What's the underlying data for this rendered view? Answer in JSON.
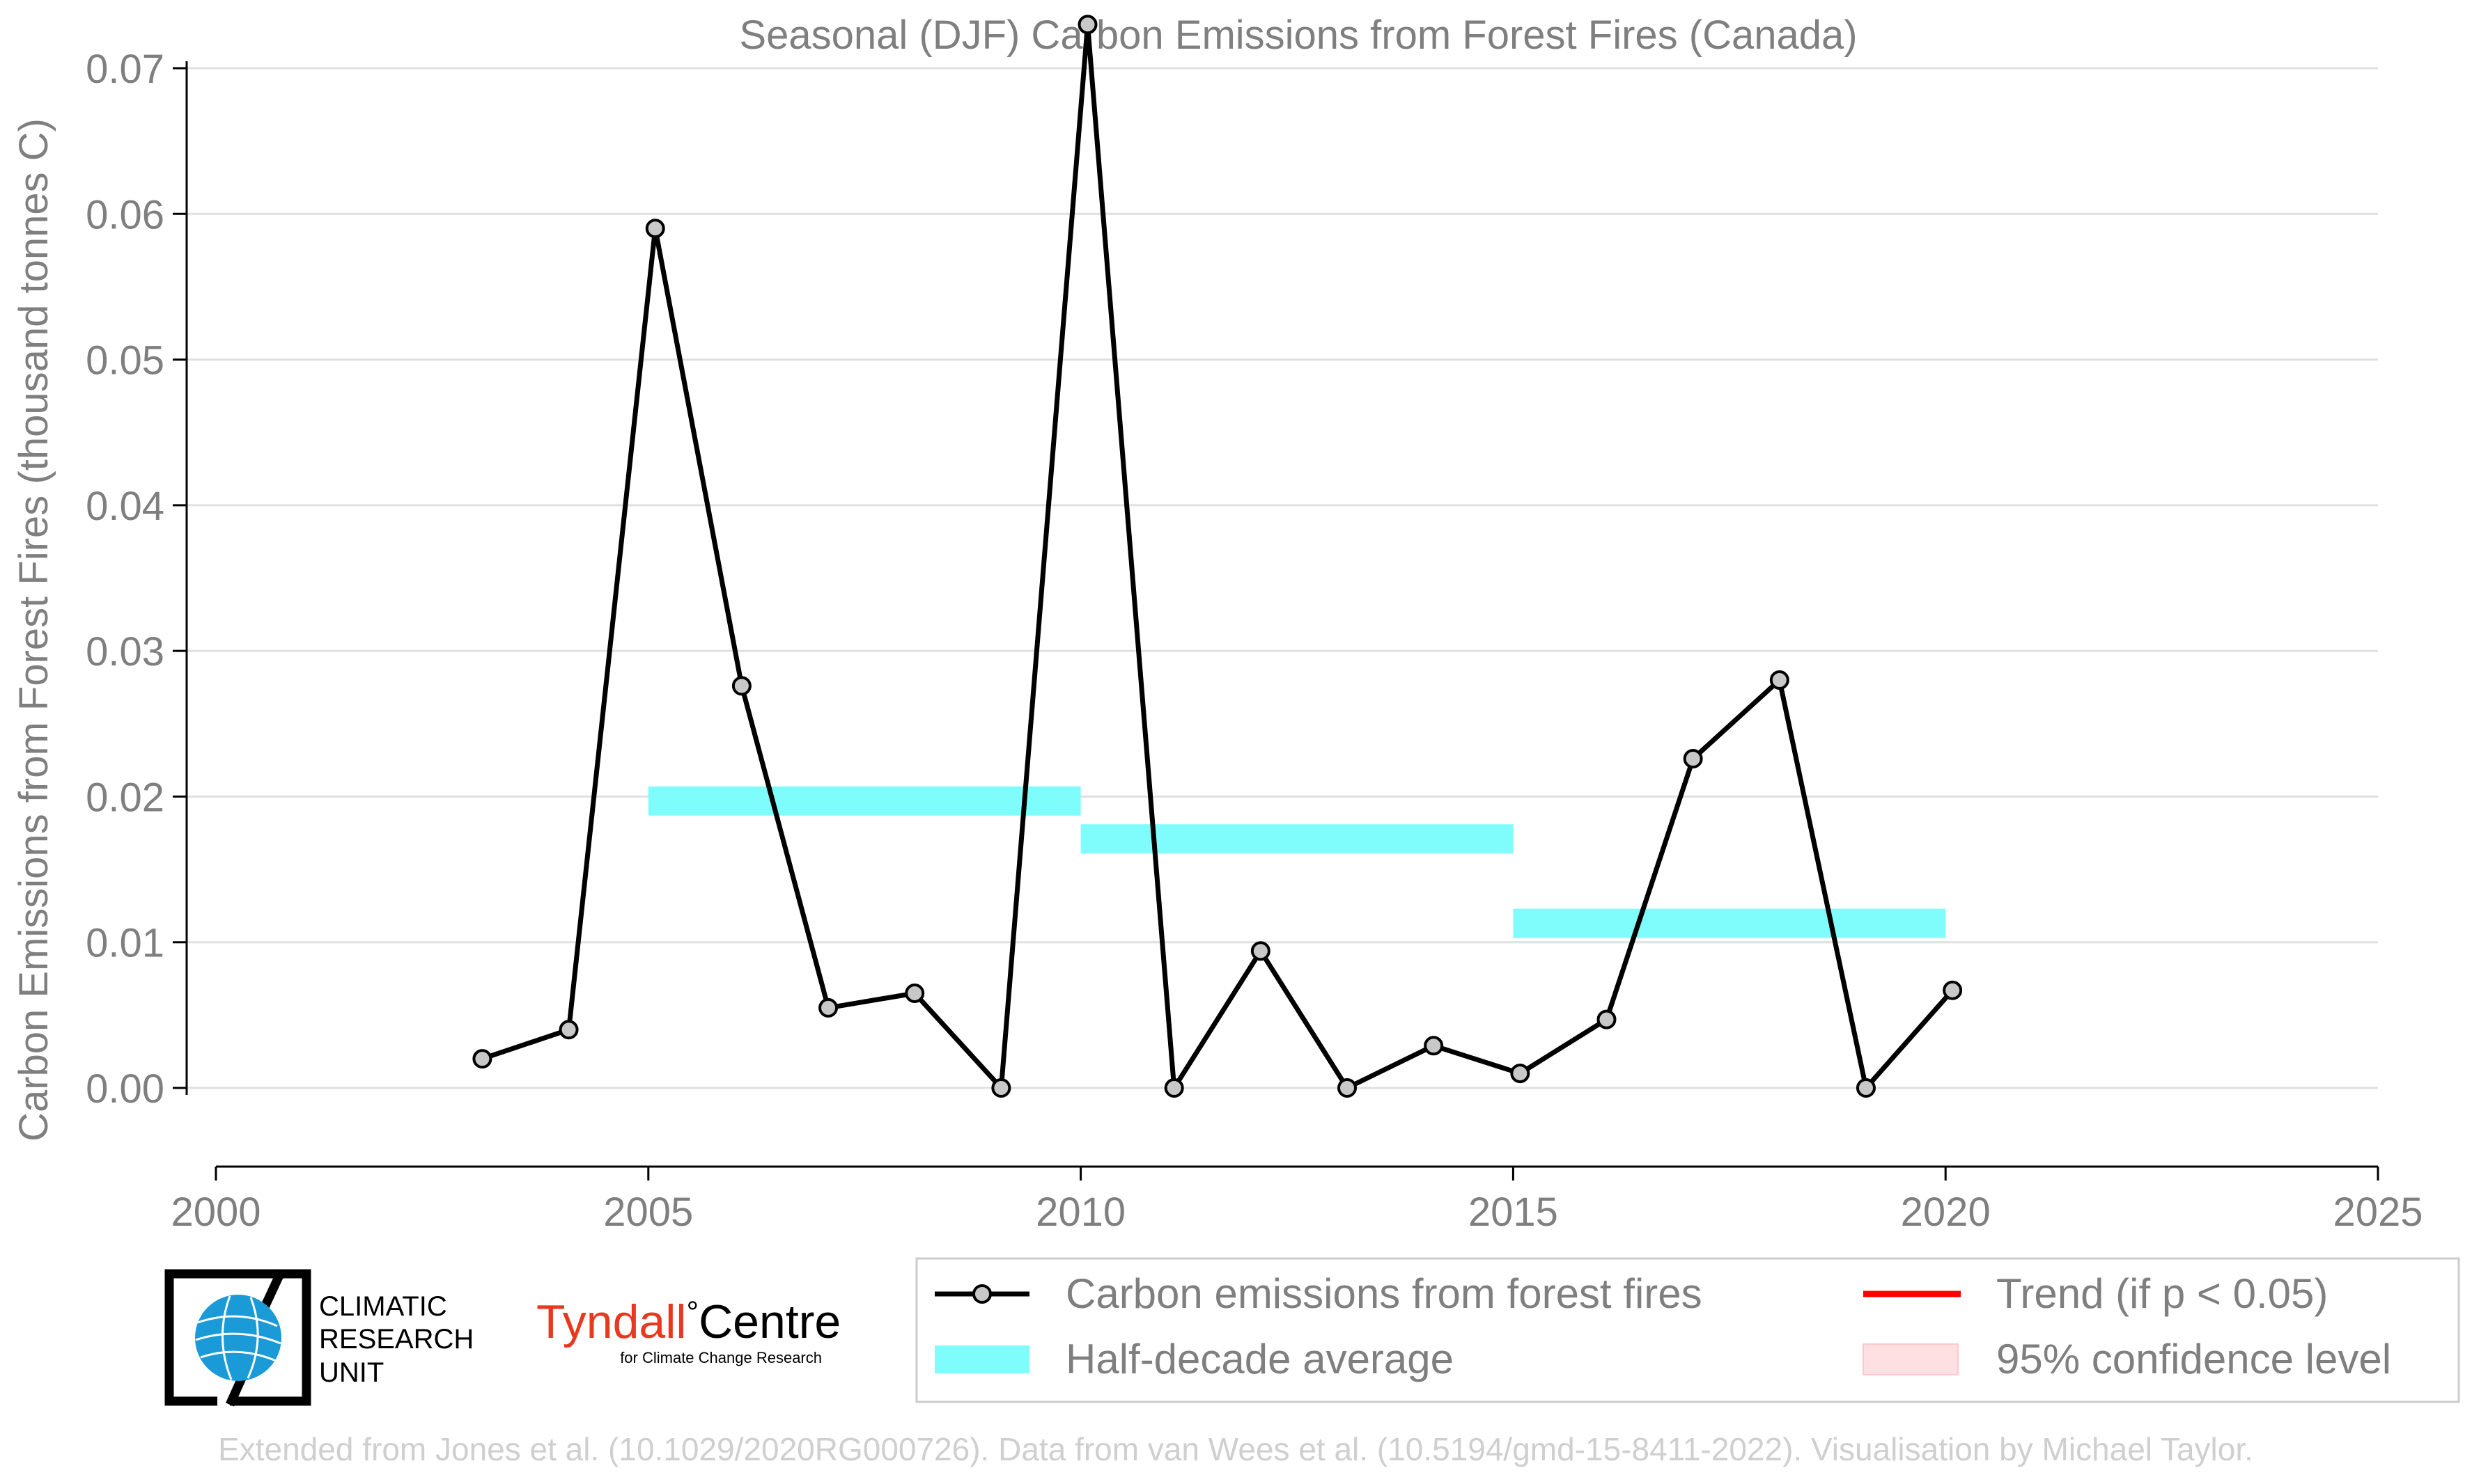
{
  "chart_data": {
    "type": "line",
    "title": "Seasonal (DJF) Carbon Emissions from Forest Fires (Canada)",
    "xlabel": "",
    "ylabel": "Carbon Emissions from Forest Fires (thousand tonnes C)",
    "xlim": [
      2000,
      2025
    ],
    "ylim": [
      -0.006,
      0.074
    ],
    "xticks": [
      2000,
      2005,
      2010,
      2015,
      2020,
      2025
    ],
    "xtick_labels": [
      "2000",
      "2005",
      "2010",
      "2015",
      "2020",
      "2025"
    ],
    "yticks": [
      0.0,
      0.01,
      0.02,
      0.03,
      0.04,
      0.05,
      0.06,
      0.07
    ],
    "ytick_labels": [
      "0.00",
      "0.01",
      "0.02",
      "0.03",
      "0.04",
      "0.05",
      "0.06",
      "0.07"
    ],
    "grid": "horizontal",
    "series": [
      {
        "name": "Carbon emissions from forest fires",
        "color": "#000000",
        "marker_fill": "#c8c8c8",
        "x": [
          2003.08,
          2004.08,
          2005.08,
          2006.08,
          2007.08,
          2008.08,
          2009.08,
          2010.08,
          2011.08,
          2012.08,
          2013.08,
          2014.08,
          2015.08,
          2016.08,
          2017.08,
          2018.08,
          2019.08,
          2020.08
        ],
        "values": [
          0.002,
          0.004,
          0.059,
          0.0276,
          0.0055,
          0.0065,
          0.0,
          0.073,
          0.0,
          0.0094,
          0.0,
          0.0029,
          0.001,
          0.0047,
          0.0226,
          0.028,
          0.0,
          0.0067
        ]
      }
    ],
    "half_decade_averages": {
      "name": "Half-decade average",
      "color": "#7ffdfd",
      "bands": [
        {
          "x_start": 2005,
          "x_end": 2010,
          "y_low": 0.0187,
          "y_high": 0.0207
        },
        {
          "x_start": 2010,
          "x_end": 2015,
          "y_low": 0.0161,
          "y_high": 0.0181
        },
        {
          "x_start": 2015,
          "x_end": 2020,
          "y_low": 0.0103,
          "y_high": 0.0123
        }
      ]
    },
    "legend": {
      "placement": "bottom-right",
      "entries": [
        {
          "label": "Carbon emissions from forest fires",
          "kind": "line-marker",
          "color": "#000000"
        },
        {
          "label": "Trend (if p < 0.05)",
          "kind": "line",
          "color": "#ff0000"
        },
        {
          "label": "Half-decade average",
          "kind": "patch",
          "color": "#7ffdfd"
        },
        {
          "label": "95% confidence level",
          "kind": "patch",
          "color": "#ffe0e2"
        }
      ]
    }
  },
  "logos": {
    "cru": {
      "line1": "CLIMATIC",
      "line2": "RESEARCH",
      "line3": "UNIT",
      "icon": "globe-icon"
    },
    "tyndall": {
      "name_part1": "Tyndall",
      "degree": "°",
      "name_part2": "Centre",
      "tagline": "for Climate Change Research",
      "color": "#e8381f"
    }
  },
  "footer": {
    "credit": "Extended from Jones et al. (10.1029/2020RG000726). Data from van Wees et al. (10.5194/gmd-15-8411-2022). Visualisation by Michael Taylor."
  },
  "colors": {
    "text_grey": "#7f7f7f",
    "grid": "#e0e0e0",
    "axis": "#000000",
    "footer": "#cfcfcf"
  }
}
